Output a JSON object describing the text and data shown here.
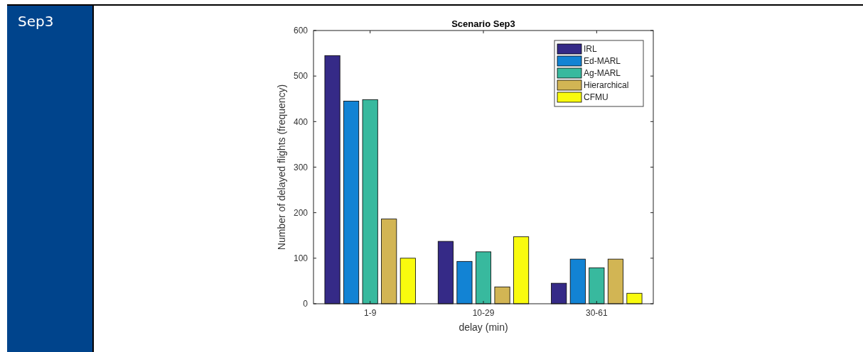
{
  "chart_data": {
    "type": "bar",
    "title": "Scenario Sep3",
    "xlabel": "delay (min)",
    "ylabel": "Number of delayed flights (frequency)",
    "categories": [
      "1-9",
      "10-29",
      "30-61"
    ],
    "series": [
      {
        "name": "IRL",
        "color": "#352a87",
        "values": [
          545,
          137,
          45
        ]
      },
      {
        "name": "Ed-MARL",
        "color": "#1283d4",
        "values": [
          445,
          93,
          98
        ]
      },
      {
        "name": "Ag-MARL",
        "color": "#38b99e",
        "values": [
          448,
          114,
          79
        ]
      },
      {
        "name": "Hierarchical",
        "color": "#d2b554",
        "values": [
          186,
          37,
          98
        ]
      },
      {
        "name": "CFMU",
        "color": "#f9fb0e",
        "values": [
          100,
          147,
          23
        ]
      }
    ],
    "ylim": [
      0,
      600
    ],
    "yticks": [
      0,
      100,
      200,
      300,
      400,
      500,
      600
    ],
    "grid": false,
    "legend": "top right",
    "annotations": [
      "Sep3"
    ]
  }
}
